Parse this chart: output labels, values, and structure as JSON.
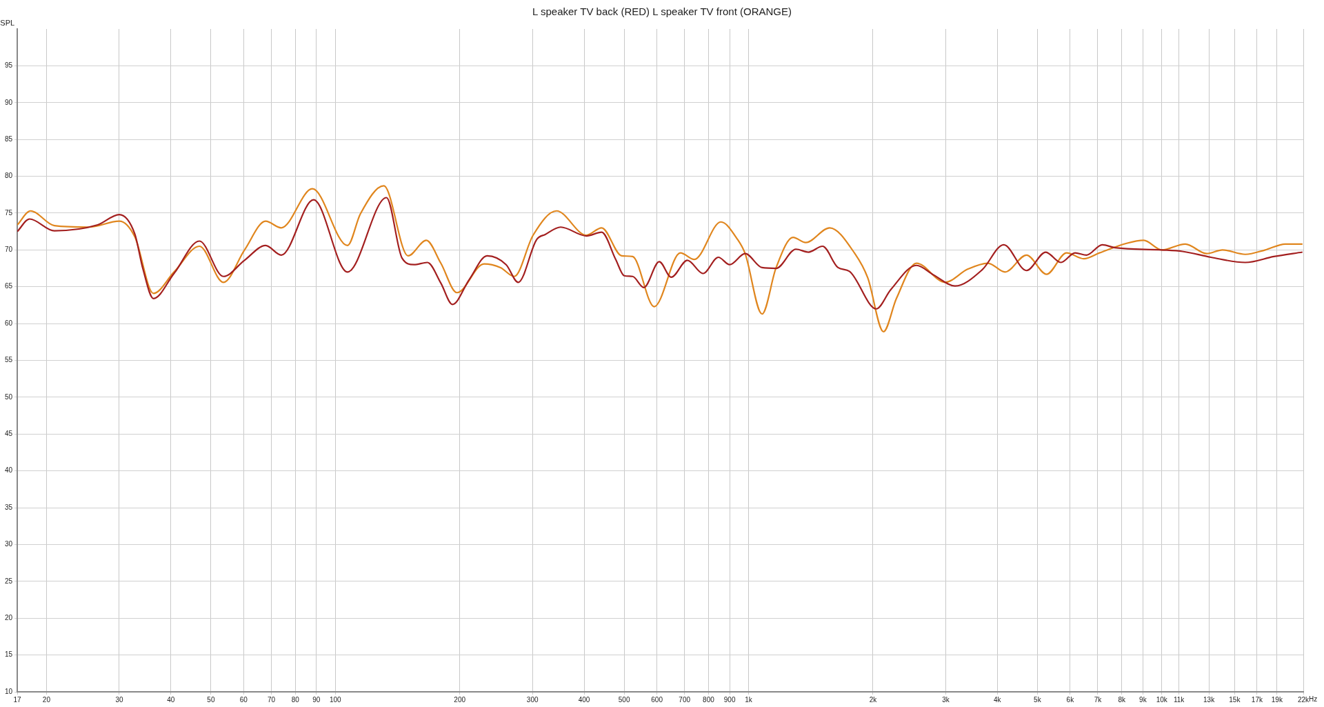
{
  "chart_data": {
    "type": "line",
    "title": "L speaker TV back (RED) L speaker TV front (ORANGE)",
    "ylabel": "SPL",
    "log": "x",
    "grid": true,
    "legend": false,
    "marker": "none",
    "line_style": "solid",
    "xlim": [
      17,
      22000
    ],
    "ylim": [
      10,
      100
    ],
    "xticks": [
      17,
      20,
      30,
      40,
      50,
      60,
      70,
      80,
      90,
      100,
      200,
      300,
      400,
      500,
      600,
      700,
      800,
      900,
      {
        "value": 1000,
        "label": "1k"
      },
      {
        "value": 2000,
        "label": "2k"
      },
      {
        "value": 3000,
        "label": "3k"
      },
      {
        "value": 4000,
        "label": "4k"
      },
      {
        "value": 5000,
        "label": "5k"
      },
      {
        "value": 6000,
        "label": "6k"
      },
      {
        "value": 7000,
        "label": "7k"
      },
      {
        "value": 8000,
        "label": "8k"
      },
      {
        "value": 9000,
        "label": "9k"
      },
      {
        "value": 10000,
        "label": "10k"
      },
      {
        "value": 11000,
        "label": "11k"
      },
      {
        "value": 13000,
        "label": "13k"
      },
      {
        "value": 15000,
        "label": "15k"
      },
      {
        "value": 17000,
        "label": "17k"
      },
      {
        "value": 19000,
        "label": "19k"
      },
      {
        "value": 22000,
        "label": "22k"
      }
    ],
    "xlabel": "Hz",
    "yticks": [
      10,
      15,
      20,
      25,
      30,
      35,
      40,
      45,
      50,
      55,
      60,
      65,
      70,
      75,
      80,
      85,
      90,
      95
    ],
    "series": [
      {
        "color": "#a31f1f",
        "x": [
          17,
          18.2,
          20.9,
          26.6,
          30,
          32.7,
          34.2,
          36.3,
          40.7,
          46.9,
          53.6,
          60.3,
          67.8,
          74,
          88.6,
          107,
          133,
          145,
          155,
          167,
          180,
          192,
          211,
          233,
          259,
          277,
          307,
          322,
          351,
          405,
          441,
          477,
          500,
          524,
          558,
          608,
          650,
          711,
          776,
          845,
          900,
          981,
          1078,
          1166,
          1302,
          1396,
          1510,
          1646,
          1754,
          2038,
          2208,
          2548,
          2804,
          3159,
          3675,
          4143,
          4706,
          5236,
          5698,
          6168,
          6575,
          7178,
          7709,
          10000,
          11220,
          13150,
          15920,
          18670,
          21900
        ],
        "values": [
          72.5,
          74.2,
          72.6,
          73.4,
          74.8,
          72.2,
          67.5,
          63.4,
          66.8,
          71.2,
          66.4,
          68.6,
          70.6,
          69.3,
          76.8,
          67,
          77.1,
          68.9,
          68,
          68.3,
          65.5,
          62.6,
          66,
          69.2,
          68,
          65.6,
          71.4,
          72.1,
          73.1,
          71.9,
          72.4,
          68.7,
          66.5,
          66.4,
          64.9,
          68.4,
          66.3,
          68.6,
          66.8,
          69,
          68,
          69.5,
          67.6,
          67.5,
          70.1,
          69.7,
          70.5,
          67.6,
          67.1,
          62,
          64.6,
          67.9,
          66.6,
          65.1,
          67.3,
          70.7,
          67.2,
          69.7,
          68.3,
          69.6,
          69.3,
          70.7,
          70.3,
          70,
          69.8,
          69,
          68.3,
          69.1,
          69.7
        ]
      },
      {
        "color": "#e0861e",
        "x": [
          17,
          18.3,
          20.9,
          25.3,
          30,
          32.7,
          36.3,
          40.7,
          46.9,
          53.6,
          60.3,
          67.8,
          74,
          88,
          107,
          115,
          131,
          150,
          166,
          180,
          197,
          229,
          251,
          271,
          301,
          343,
          405,
          441,
          493,
          524,
          591,
          684,
          739,
          857,
          941,
          981,
          1078,
          1166,
          1281,
          1375,
          1571,
          1808,
          1943,
          2121,
          2279,
          2548,
          2989,
          3394,
          3797,
          4176,
          4706,
          5261,
          5883,
          6473,
          7064,
          8220,
          9040,
          10000,
          11400,
          12840,
          14020,
          15920,
          17800,
          19900,
          21900
        ],
        "values": [
          73.4,
          75.3,
          73.3,
          73.1,
          73.9,
          71.8,
          64.1,
          67,
          70.5,
          65.6,
          70,
          73.9,
          73,
          78.3,
          70.6,
          74.9,
          78.7,
          69.2,
          71.3,
          68.2,
          64.2,
          68.1,
          67.6,
          66.4,
          72,
          75.3,
          72,
          73,
          69.2,
          69.1,
          62.3,
          69.6,
          68.7,
          73.8,
          71.4,
          69.5,
          61.3,
          67.6,
          71.7,
          71,
          73,
          69.5,
          66.2,
          58.9,
          63.4,
          68.2,
          65.6,
          67.4,
          68.2,
          67,
          69.3,
          66.7,
          69.6,
          68.8,
          69.6,
          70.9,
          71.3,
          70,
          70.8,
          69.5,
          70,
          69.4,
          70,
          70.8,
          70.8
        ]
      }
    ]
  }
}
